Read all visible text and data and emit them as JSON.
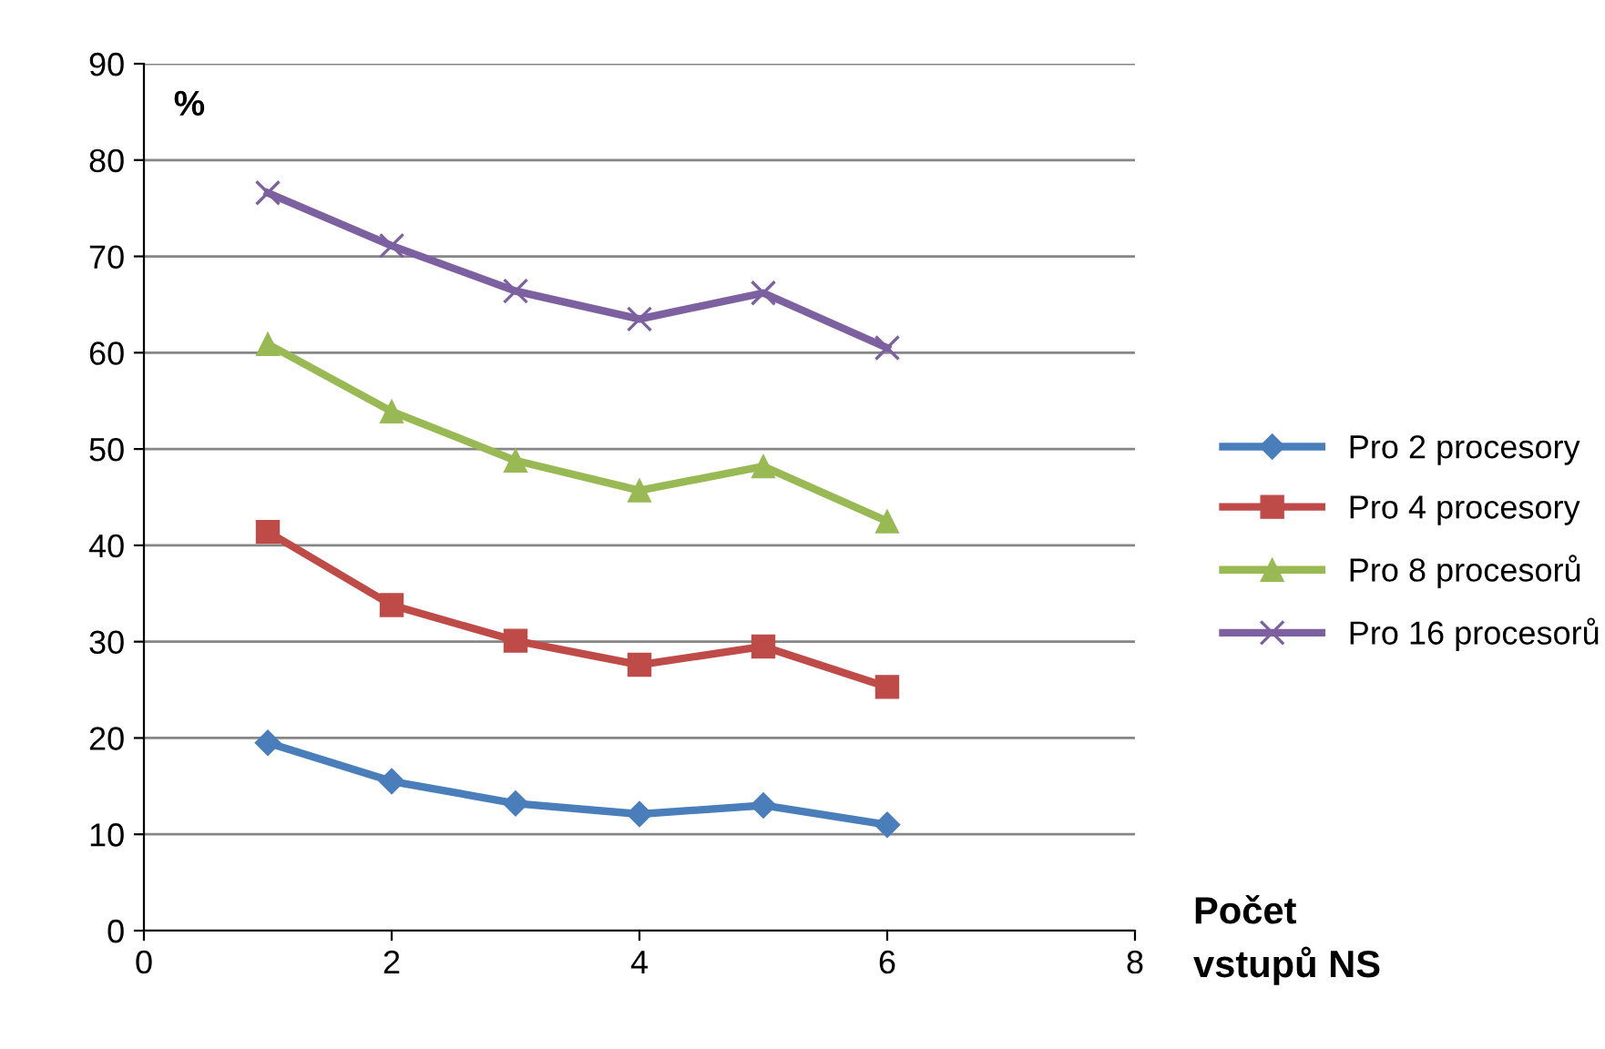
{
  "chart_data": {
    "type": "line",
    "ylabel": "%",
    "xlabel": "Počet\nvstupů NS",
    "x": [
      1,
      2,
      3,
      4,
      5,
      6
    ],
    "series": [
      {
        "name": "Pro 2 procesory",
        "color": "#4a7ebb",
        "marker": "diamond",
        "values": [
          19.5,
          15.5,
          13.2,
          12.1,
          13.0,
          11.0
        ]
      },
      {
        "name": "Pro 4 procesory",
        "color": "#be4b48",
        "marker": "square",
        "values": [
          41.4,
          33.8,
          30.1,
          27.6,
          29.5,
          25.3
        ]
      },
      {
        "name": "Pro 8 procesorů",
        "color": "#98b954",
        "marker": "triangle",
        "values": [
          60.9,
          53.9,
          48.8,
          45.7,
          48.2,
          42.5
        ]
      },
      {
        "name": "Pro 16 procesorů",
        "color": "#7d60a0",
        "marker": "cross",
        "values": [
          76.6,
          71.1,
          66.4,
          63.5,
          66.2,
          60.5
        ]
      }
    ],
    "xlim": [
      0,
      8
    ],
    "xticks": [
      0,
      2,
      4,
      6,
      8
    ],
    "ylim": [
      0,
      90
    ],
    "yticks": [
      0,
      10,
      20,
      30,
      40,
      50,
      60,
      70,
      80,
      90
    ],
    "grid": "y",
    "legend": "right",
    "line_style": "solid"
  }
}
